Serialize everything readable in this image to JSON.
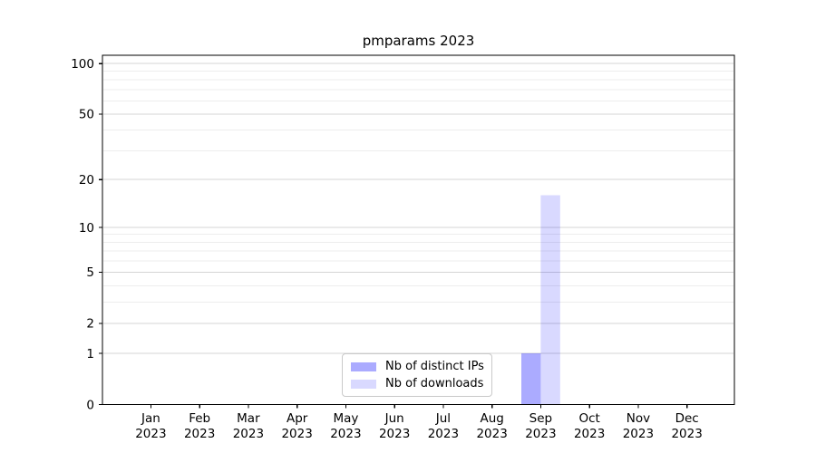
{
  "chart_data": {
    "type": "bar",
    "title": "pmparams 2023",
    "categories": [
      "Jan",
      "Feb",
      "Mar",
      "Apr",
      "May",
      "Jun",
      "Jul",
      "Aug",
      "Sep",
      "Oct",
      "Nov",
      "Dec"
    ],
    "year_label": "2023",
    "series": [
      {
        "name": "Nb of distinct IPs",
        "color": "#0000ff",
        "alpha": 0.33,
        "fill": "rgba(0,0,255,0.33)",
        "values": [
          0,
          0,
          0,
          0,
          0,
          0,
          0,
          0,
          1,
          0,
          0,
          0
        ]
      },
      {
        "name": "Nb of downloads",
        "color": "#0000ff",
        "alpha": 0.15,
        "fill": "rgba(0,0,255,0.15)",
        "values": [
          0,
          0,
          0,
          0,
          0,
          0,
          0,
          0,
          16,
          0,
          0,
          0
        ]
      }
    ],
    "xlabel": "",
    "ylabel": "",
    "yscale": "log1p",
    "ylim": [
      0,
      112
    ],
    "yticks": [
      0,
      1,
      2,
      5,
      10,
      20,
      50,
      100
    ],
    "yticks_minor": [
      3,
      4,
      6,
      7,
      8,
      9,
      30,
      40,
      60,
      70,
      80,
      90
    ],
    "grid": {
      "major_color": "#d4d4d4",
      "minor_color": "#ededed"
    },
    "axis_color": "#000000",
    "tick_label_color": "#000000",
    "legend_position": "lower-center"
  }
}
